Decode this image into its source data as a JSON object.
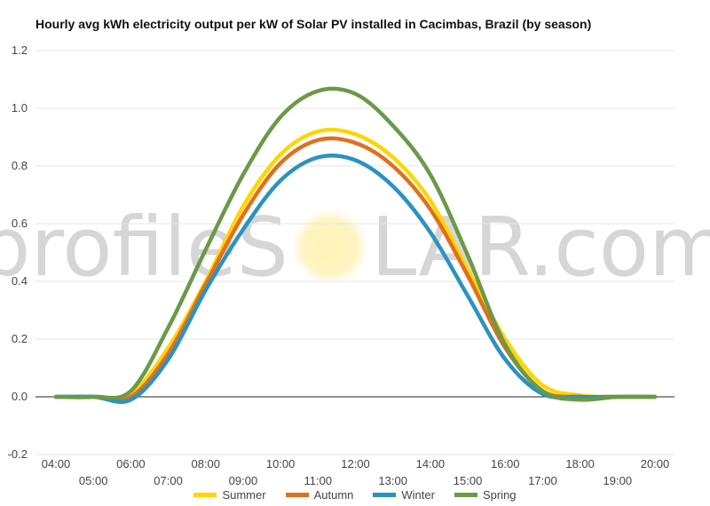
{
  "watermark": {
    "left": "profileS",
    "right": "LAR.com"
  },
  "chart_data": {
    "type": "line",
    "title": "Hourly avg kWh electricity output per kW of Solar PV installed in Cacimbas, Brazil (by season)",
    "xlabel": "",
    "ylabel": "",
    "ylim": [
      -0.2,
      1.2
    ],
    "yticks": [
      "1.2",
      "1.0",
      "0.8",
      "0.6",
      "0.4",
      "0.2",
      "0.0",
      "-0.2"
    ],
    "x": [
      "04:00",
      "05:00",
      "06:00",
      "07:00",
      "08:00",
      "09:00",
      "10:00",
      "11:00",
      "12:00",
      "13:00",
      "14:00",
      "15:00",
      "16:00",
      "17:00",
      "18:00",
      "19:00",
      "20:00"
    ],
    "grid": true,
    "legend_position": "bottom",
    "series": [
      {
        "name": "Summer",
        "color": "#FFD500",
        "values": [
          0,
          0,
          0.01,
          0.17,
          0.4,
          0.66,
          0.84,
          0.92,
          0.91,
          0.83,
          0.68,
          0.44,
          0.2,
          0.04,
          0.005,
          0,
          0
        ]
      },
      {
        "name": "Autumn",
        "color": "#E07020",
        "values": [
          0,
          0,
          0,
          0.15,
          0.39,
          0.63,
          0.81,
          0.89,
          0.88,
          0.8,
          0.65,
          0.42,
          0.17,
          0.02,
          0,
          0,
          0
        ]
      },
      {
        "name": "Winter",
        "color": "#2A93C1",
        "values": [
          0,
          0,
          -0.01,
          0.13,
          0.37,
          0.58,
          0.75,
          0.83,
          0.82,
          0.73,
          0.57,
          0.35,
          0.13,
          0.01,
          0,
          0,
          0
        ]
      },
      {
        "name": "Spring",
        "color": "#6A9A48",
        "values": [
          0,
          0,
          0.02,
          0.24,
          0.51,
          0.77,
          0.97,
          1.06,
          1.05,
          0.94,
          0.77,
          0.49,
          0.18,
          0.02,
          -0.01,
          0,
          0
        ]
      }
    ]
  }
}
